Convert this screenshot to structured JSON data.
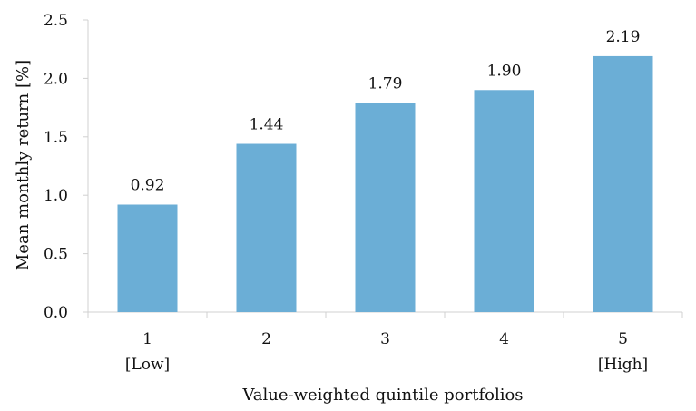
{
  "chart_data": {
    "type": "bar",
    "categories": [
      "1",
      "2",
      "3",
      "4",
      "5"
    ],
    "category_sublabels": [
      "[Low]",
      "",
      "",
      "",
      "[High]"
    ],
    "values": [
      0.92,
      1.44,
      1.79,
      1.9,
      2.19
    ],
    "value_labels": [
      "0.92",
      "1.44",
      "1.79",
      "1.90",
      "2.19"
    ],
    "title": "",
    "xlabel": "Value-weighted quintile portfolios",
    "ylabel": "Mean monthly return [%]",
    "ylim": [
      0,
      2.5
    ],
    "yticks": [
      "0.0",
      "0.5",
      "1.0",
      "1.5",
      "2.0",
      "2.5"
    ],
    "grid": false,
    "legend": "none",
    "bar_color": "#6baed6",
    "axis_color": "#d0d0d0"
  }
}
